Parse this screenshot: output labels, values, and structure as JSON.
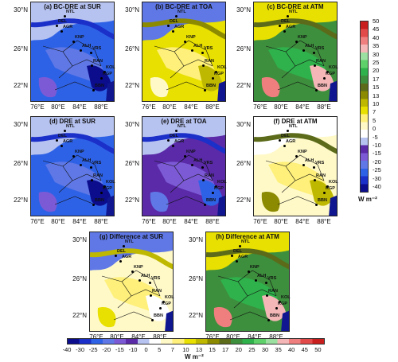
{
  "panels": [
    {
      "title": "(a) BC-DRE at SUR",
      "theme": "blue"
    },
    {
      "title": "(b) BC-DRE at TOA",
      "theme": "yellow"
    },
    {
      "title": "(c) BC-DRE at ATM",
      "theme": "green"
    },
    {
      "title": "(d) DRE at SUR",
      "theme": "blue"
    },
    {
      "title": "(e) DRE at TOA",
      "theme": "purple"
    },
    {
      "title": "(f) DRE at ATM",
      "theme": "olive"
    },
    {
      "title": "(g) Difference at SUR",
      "theme": "paleyellow"
    },
    {
      "title": "(h) Difference at ATM",
      "theme": "green"
    }
  ],
  "axes": {
    "lat_labels": [
      "30°N",
      "26°N",
      "22°N"
    ],
    "lon_labels": [
      "76°E",
      "80°E",
      "84°E",
      "88°E"
    ]
  },
  "cities": [
    "NTL",
    "DEL",
    "AGR",
    "KNP",
    "ALH",
    "VRS",
    "RAN",
    "KOL",
    "KGP",
    "BBN"
  ],
  "colorbar_vertical": {
    "ticks": [
      "50",
      "45",
      "40",
      "35",
      "30",
      "25",
      "20",
      "17",
      "15",
      "13",
      "10",
      "7",
      "5",
      "0",
      "-5",
      "-10",
      "-15",
      "-20",
      "-25",
      "-30",
      "-40"
    ],
    "unit": "W m⁻²"
  },
  "colorbar_horizontal": {
    "ticks": [
      "-40",
      "-30",
      "-25",
      "-20",
      "-15",
      "-10",
      "0",
      "5",
      "7",
      "10",
      "13",
      "15",
      "17",
      "20",
      "25",
      "30",
      "35",
      "40",
      "45",
      "50"
    ],
    "unit": "W m⁻²"
  },
  "colors": {
    "scale": [
      "#0b0d8c",
      "#1b2fc9",
      "#2e62e6",
      "#5f78e6",
      "#7c5ad6",
      "#5a2aa8",
      "#b6c2f0",
      "#ffffff",
      "#fff9c8",
      "#fef07a",
      "#e8e000",
      "#bfb800",
      "#8c8a00",
      "#5b6b1a",
      "#3d8f3d",
      "#2fb24c",
      "#5fd16a",
      "#9be0a0",
      "#f4b6b6",
      "#ef7f7f",
      "#e24a4a",
      "#c81e1e"
    ],
    "sea": "#0f168f"
  }
}
